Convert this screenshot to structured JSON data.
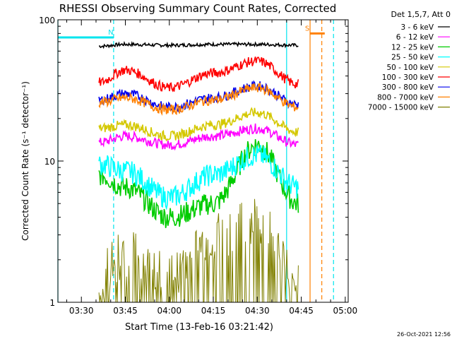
{
  "chart_data": {
    "type": "line",
    "title": "RHESSI Observing Summary Count Rates, Corrected",
    "xlabel": "Start Time (13-Feb-16 03:21:42)",
    "ylabel": "Corrected Count Rate (s⁻¹ detector⁻¹)",
    "yscale": "log",
    "ylim": [
      1,
      100
    ],
    "xlim": [
      "03:22",
      "05:01"
    ],
    "xticks": [
      "03:30",
      "03:45",
      "04:00",
      "04:15",
      "04:30",
      "04:45",
      "05:00"
    ],
    "yticks": [
      "1",
      "10",
      "100"
    ],
    "legend_header": "Det 1,5,7, Att 0",
    "legend_position": "top-right",
    "timestamp": "26-Oct-2021 12:56",
    "markers": [
      {
        "label": "N",
        "color": "#00e5ee",
        "time": "03:41",
        "span": [
          "03:22",
          "03:41"
        ],
        "level": 75
      },
      {
        "label": "S",
        "color": "#ff8000",
        "time": "04:48",
        "span": [
          "04:48",
          "04:53"
        ],
        "level": 80
      }
    ],
    "vlines": [
      {
        "time": "03:22",
        "color": "#00e5ee",
        "style": "solid"
      },
      {
        "time": "03:41",
        "color": "#00e5ee",
        "style": "dashed"
      },
      {
        "time": "04:40",
        "color": "#00e5ee",
        "style": "solid"
      },
      {
        "time": "04:48",
        "color": "#ff8000",
        "style": "solid"
      },
      {
        "time": "04:52",
        "color": "#ff8000",
        "style": "dashed"
      },
      {
        "time": "04:56",
        "color": "#00e5ee",
        "style": "dashed"
      }
    ],
    "time_range": [
      "03:36",
      "04:44"
    ],
    "series": [
      {
        "name": "3 - 6 keV",
        "color": "#000000",
        "x": [
          "03:36",
          "03:45",
          "04:00",
          "04:15",
          "04:30",
          "04:44"
        ],
        "values": [
          65,
          67,
          66,
          67,
          67,
          66
        ]
      },
      {
        "name": "6 - 12 keV",
        "color": "#ff00ff",
        "x": [
          "03:36",
          "03:45",
          "04:00",
          "04:15",
          "04:30",
          "04:44"
        ],
        "values": [
          13.5,
          15,
          13,
          15,
          17,
          13
        ]
      },
      {
        "name": "12 - 25 keV",
        "color": "#00cc00",
        "x": [
          "03:36",
          "03:45",
          "04:00",
          "04:15",
          "04:30",
          "04:44"
        ],
        "values": [
          8,
          6.5,
          4,
          5,
          13,
          5
        ]
      },
      {
        "name": "25 - 50 keV",
        "color": "#00ffff",
        "x": [
          "03:36",
          "03:45",
          "04:00",
          "04:15",
          "04:30",
          "04:44"
        ],
        "values": [
          9.5,
          8.5,
          5.5,
          8,
          11,
          6.5
        ]
      },
      {
        "name": "50 - 100 keV",
        "color": "#d4c800",
        "x": [
          "03:36",
          "03:45",
          "04:00",
          "04:15",
          "04:30",
          "04:44"
        ],
        "values": [
          17,
          18,
          15,
          18,
          22,
          16
        ]
      },
      {
        "name": "100 - 300 keV",
        "color": "#ff0000",
        "x": [
          "03:36",
          "03:45",
          "04:00",
          "04:15",
          "04:30",
          "04:44"
        ],
        "values": [
          36,
          44,
          33,
          42,
          51,
          35
        ]
      },
      {
        "name": "300 - 800 keV",
        "color": "#0000ee",
        "x": [
          "03:36",
          "03:45",
          "04:00",
          "04:15",
          "04:30",
          "04:44"
        ],
        "values": [
          27,
          30,
          24,
          28,
          34,
          25
        ]
      },
      {
        "name": "800 - 7000 keV",
        "color": "#ff8000",
        "x": [
          "03:36",
          "03:45",
          "04:00",
          "04:15",
          "04:30",
          "04:44"
        ],
        "values": [
          26,
          28,
          23,
          27,
          33,
          24
        ]
      },
      {
        "name": "7000 - 15000 keV",
        "color": "#808000",
        "x": [
          "03:36",
          "03:45",
          "04:00",
          "04:15",
          "04:30",
          "04:44"
        ],
        "values": [
          1,
          1.5,
          1,
          1.9,
          2.5,
          1
        ]
      }
    ]
  }
}
